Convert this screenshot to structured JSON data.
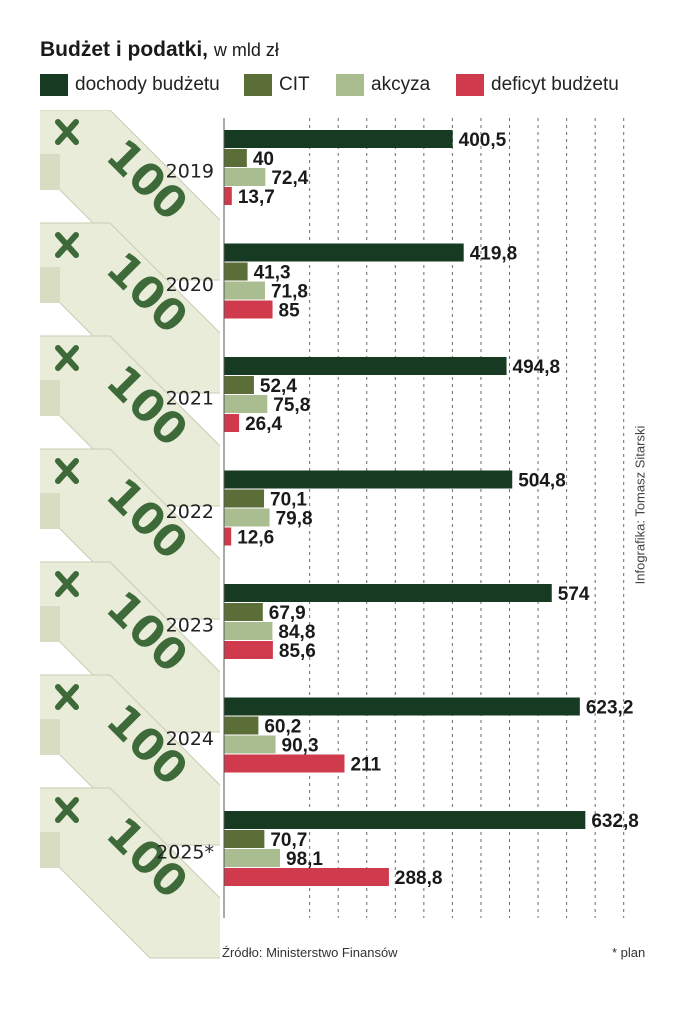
{
  "title": {
    "bold": "Budżet i podatki,",
    "unit": "w mld zł"
  },
  "credit": "Infografika: Tomasz Sitarski",
  "source": "Źródło: Ministerstwo Finansów",
  "footnote": "* plan",
  "colors": {
    "dochody": "#173a22",
    "cit": "#5b6e37",
    "akcyza": "#a9bd90",
    "deficyt": "#cf3a4c",
    "grid": "#6b6b6b",
    "note_paper": "#e9ecd9",
    "note_green": "#3e6a3a"
  },
  "note_text": "100",
  "chart_data": {
    "type": "bar",
    "orientation": "horizontal",
    "title": "Budżet i podatki, w mld zł",
    "unit": "mld zł",
    "categories": [
      "2019",
      "2020",
      "2021",
      "2022",
      "2023",
      "2024",
      "2025*"
    ],
    "series": [
      {
        "name": "dochody budżetu",
        "values": [
          400.5,
          419.8,
          494.8,
          504.8,
          574,
          623.2,
          632.8
        ],
        "labels": [
          "400,5",
          "419,8",
          "494,8",
          "504,8",
          "574",
          "623,2",
          "632,8"
        ]
      },
      {
        "name": "CIT",
        "values": [
          40,
          41.3,
          52.4,
          70.1,
          67.9,
          60.2,
          70.7
        ],
        "labels": [
          "40",
          "41,3",
          "52,4",
          "70,1",
          "67,9",
          "60,2",
          "70,7"
        ]
      },
      {
        "name": "akcyza",
        "values": [
          72.4,
          71.8,
          75.8,
          79.8,
          84.8,
          90.3,
          98.1
        ],
        "labels": [
          "72,4",
          "71,8",
          "75,8",
          "79,8",
          "84,8",
          "90,3",
          "98,1"
        ]
      },
      {
        "name": "deficyt budżetu",
        "values": [
          13.7,
          85,
          26.4,
          12.6,
          85.6,
          211,
          288.8
        ],
        "labels": [
          "13,7",
          "85",
          "26,4",
          "12,6",
          "85,6",
          "211",
          "288,8"
        ]
      }
    ],
    "legend": "top",
    "grid": "vertical dashed lines"
  }
}
